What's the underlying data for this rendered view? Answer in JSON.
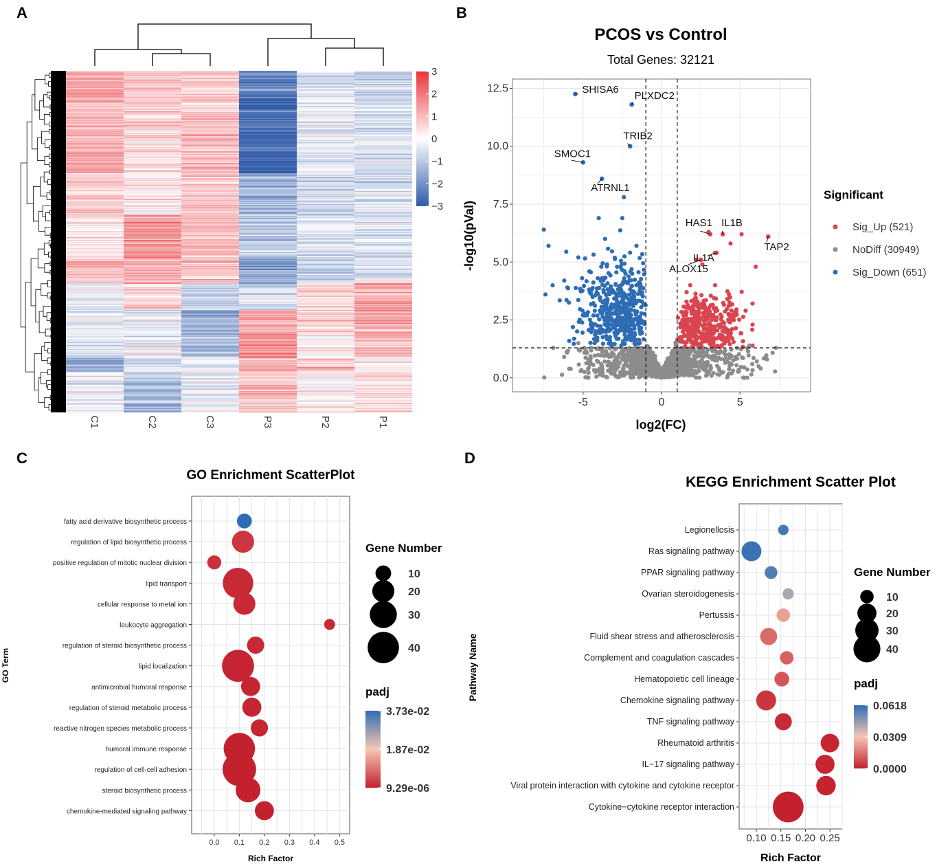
{
  "panels": {
    "a": "A",
    "b": "B",
    "c": "C",
    "d": "D"
  },
  "colors": {
    "heat_high": "#e8343a",
    "heat_mid": "#ffffff",
    "heat_low": "#2f5aa8",
    "up": "#d9454f",
    "nodiff": "#8c8c8c",
    "down": "#2e6db4",
    "padj_high": "#2f6db3",
    "padj_mid": "#f5c6b2",
    "padj_low": "#c4202e"
  },
  "chart_data": [
    {
      "type": "heatmap",
      "panel": "A",
      "columns": [
        "C1",
        "C2",
        "C3",
        "P3",
        "P2",
        "P1"
      ],
      "colorbar": {
        "ticks": [
          "3",
          "2",
          "1",
          "0",
          "−1",
          "−2",
          "−3"
        ],
        "range": [
          -3,
          3
        ]
      },
      "blocks": [
        [
          0.0,
          0.08,
          [
            1.3,
            0.9,
            0.6,
            -2.2,
            -0.6,
            -0.9
          ]
        ],
        [
          0.08,
          0.3,
          [
            1.1,
            0.6,
            0.9,
            -2.6,
            -0.3,
            -0.5
          ]
        ],
        [
          0.3,
          0.42,
          [
            0.7,
            0.3,
            0.9,
            -1.4,
            -0.7,
            -0.6
          ]
        ],
        [
          0.42,
          0.55,
          [
            0.4,
            1.5,
            1.0,
            -1.0,
            -0.4,
            -0.6
          ]
        ],
        [
          0.55,
          0.62,
          [
            1.0,
            1.2,
            0.8,
            -1.7,
            -0.9,
            -0.4
          ]
        ],
        [
          0.62,
          0.7,
          [
            -0.2,
            0.6,
            -0.9,
            -0.6,
            0.7,
            1.4
          ]
        ],
        [
          0.7,
          0.78,
          [
            -0.3,
            -0.4,
            -1.5,
            1.3,
            0.6,
            1.3
          ]
        ],
        [
          0.78,
          0.84,
          [
            -0.6,
            -0.2,
            -1.2,
            1.6,
            0.1,
            0.9
          ]
        ],
        [
          0.84,
          0.88,
          [
            -1.5,
            -0.5,
            -0.4,
            1.1,
            0.9,
            0.3
          ]
        ],
        [
          0.88,
          1.0,
          [
            -0.2,
            -1.2,
            -0.3,
            0.9,
            0.2,
            0.4
          ]
        ]
      ]
    },
    {
      "type": "scatter",
      "panel": "B",
      "title": "PCOS vs Control",
      "subtitle": "Total Genes: 32121",
      "xlabel": "log2(FC)",
      "ylabel": "-log10(pVal)",
      "xlim": [
        -9.5,
        9.5
      ],
      "ylim": [
        -0.6,
        12.9
      ],
      "xticks": [
        "-5",
        "0",
        "5"
      ],
      "yticks": [
        "0.0",
        "2.5",
        "5.0",
        "7.5",
        "10.0",
        "12.5"
      ],
      "thresholds": {
        "log2fc": [
          -1,
          1
        ],
        "neg_log10_p": 1.3
      },
      "legend": {
        "title": "Significant",
        "items": [
          "Sig_Up (521)",
          "NoDiff (30949)",
          "Sig_Down (651)"
        ]
      },
      "labeled_genes": [
        {
          "gene": "SHISA6",
          "x": -5.5,
          "y": 12.25
        },
        {
          "gene": "PLXDC2",
          "x": -1.9,
          "y": 11.8
        },
        {
          "gene": "TRIB2",
          "x": -2.0,
          "y": 10.0
        },
        {
          "gene": "SMOC1",
          "x": -5.0,
          "y": 9.3
        },
        {
          "gene": "ATRNL1",
          "x": -3.8,
          "y": 8.6
        },
        {
          "gene": "HAS1",
          "x": 3.1,
          "y": 6.2
        },
        {
          "gene": "IL1B",
          "x": 3.9,
          "y": 6.2
        },
        {
          "gene": "IL1A",
          "x": 3.5,
          "y": 5.4
        },
        {
          "gene": "TAP2",
          "x": 6.8,
          "y": 6.1
        },
        {
          "gene": "ALOX15",
          "x": 2.5,
          "y": 5.1
        }
      ]
    },
    {
      "type": "scatter",
      "panel": "C",
      "title": "GO Enrichment ScatterPlot",
      "xlabel": "Rich Factor",
      "ylabel": "GO Term",
      "xlim": [
        -0.09,
        0.54
      ],
      "xticks": [
        "0.0",
        "0.1",
        "0.2",
        "0.3",
        "0.4",
        "0.5"
      ],
      "size_legend": {
        "title": "Gene Number",
        "values": [
          "10",
          "20",
          "30",
          "40"
        ]
      },
      "color_legend": {
        "title": "padj",
        "labels": [
          "3.73e-02",
          "1.87e-02",
          "9.29e-06"
        ]
      },
      "points": [
        {
          "term": "fatty acid derivative biosynthetic process",
          "x": 0.12,
          "genes": 9,
          "padj": 0.0373
        },
        {
          "term": "regulation of lipid biosynthetic process",
          "x": 0.115,
          "genes": 20,
          "padj": 0.0025
        },
        {
          "term": "positive regulation of mitotic nuclear division",
          "x": 0.0,
          "genes": 8,
          "padj": 0.002
        },
        {
          "term": "lipid transport",
          "x": 0.095,
          "genes": 38,
          "padj": 0.001
        },
        {
          "term": "cellular response to metal ion",
          "x": 0.12,
          "genes": 20,
          "padj": 0.001
        },
        {
          "term": "leukocyte aggregation",
          "x": 0.46,
          "genes": 5,
          "padj": 0.001
        },
        {
          "term": "regulation of steroid biosynthetic process",
          "x": 0.165,
          "genes": 12,
          "padj": 0.001
        },
        {
          "term": "lipid localization",
          "x": 0.095,
          "genes": 42,
          "padj": 0.0005
        },
        {
          "term": "antimicrobial humoral response",
          "x": 0.145,
          "genes": 15,
          "padj": 0.0005
        },
        {
          "term": "regulation of steroid metabolic process",
          "x": 0.15,
          "genes": 15,
          "padj": 0.0005
        },
        {
          "term": "reactive nitrogen species metabolic process",
          "x": 0.18,
          "genes": 12,
          "padj": 0.0005
        },
        {
          "term": "humoral immune response",
          "x": 0.1,
          "genes": 40,
          "padj": 0.0001
        },
        {
          "term": "regulation of cell-cell adhesion",
          "x": 0.1,
          "genes": 46,
          "padj": 0.0001
        },
        {
          "term": "steroid biosynthetic process",
          "x": 0.135,
          "genes": 25,
          "padj": 0.0001
        },
        {
          "term": "chemokine-mediated signaling pathway",
          "x": 0.2,
          "genes": 15,
          "padj": 0.0001
        }
      ]
    },
    {
      "type": "scatter",
      "panel": "D",
      "title": "KEGG Enrichment Scatter Plot",
      "xlabel": "Rich Factor",
      "ylabel": "Pathway Name",
      "xlim": [
        0.065,
        0.275
      ],
      "xticks": [
        "0.10",
        "0.15",
        "0.20",
        "0.25"
      ],
      "size_legend": {
        "title": "Gene Number",
        "values": [
          "10",
          "20",
          "30",
          "40"
        ]
      },
      "color_legend": {
        "title": "padj",
        "labels": [
          "0.0618",
          "0.0309",
          "0.0000"
        ]
      },
      "points": [
        {
          "term": "Legionellosis",
          "x": 0.155,
          "genes": 6,
          "padj": 0.058
        },
        {
          "term": "Ras signaling pathway",
          "x": 0.09,
          "genes": 22,
          "padj": 0.06
        },
        {
          "term": "PPAR signaling pathway",
          "x": 0.13,
          "genes": 9,
          "padj": 0.056
        },
        {
          "term": "Ovarian steroidogenesis",
          "x": 0.165,
          "genes": 7,
          "padj": 0.042
        },
        {
          "term": "Pertussis",
          "x": 0.155,
          "genes": 10,
          "padj": 0.024
        },
        {
          "term": "Fluid shear stress and atherosclerosis",
          "x": 0.125,
          "genes": 16,
          "padj": 0.014
        },
        {
          "term": "Complement and coagulation cascades",
          "x": 0.162,
          "genes": 10,
          "padj": 0.012
        },
        {
          "term": "Hematopoietic cell lineage",
          "x": 0.152,
          "genes": 12,
          "padj": 0.01
        },
        {
          "term": "Chemokine signaling pathway",
          "x": 0.12,
          "genes": 22,
          "padj": 0.004
        },
        {
          "term": "TNF signaling pathway",
          "x": 0.155,
          "genes": 16,
          "padj": 0.002
        },
        {
          "term": "Rheumatoid arthritis",
          "x": 0.25,
          "genes": 19,
          "padj": 0.001
        },
        {
          "term": "IL−17 signaling pathway",
          "x": 0.24,
          "genes": 20,
          "padj": 0.001
        },
        {
          "term": "Viral protein interaction with cytokine and cytokine receptor",
          "x": 0.242,
          "genes": 21,
          "padj": 0.0005
        },
        {
          "term": "Cytokine−cytokine receptor interaction",
          "x": 0.165,
          "genes": 52,
          "padj": 0.0001
        }
      ]
    }
  ]
}
